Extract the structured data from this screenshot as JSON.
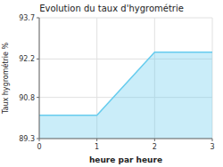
{
  "chart_data": {
    "type": "area",
    "title": "Evolution du taux d'hygrométrie",
    "xlabel": "heure par heure",
    "ylabel": "Taux hygrométrie %",
    "x": [
      0,
      1,
      2,
      3
    ],
    "values": [
      90.15,
      90.15,
      92.45,
      92.45
    ],
    "color": "#66ccee",
    "xlim": [
      0,
      3
    ],
    "ylim": [
      89.3,
      93.7
    ],
    "xticks": [
      0,
      1,
      2,
      3
    ],
    "yticks": [
      89.3,
      90.8,
      92.2,
      93.7
    ],
    "grid": true
  }
}
